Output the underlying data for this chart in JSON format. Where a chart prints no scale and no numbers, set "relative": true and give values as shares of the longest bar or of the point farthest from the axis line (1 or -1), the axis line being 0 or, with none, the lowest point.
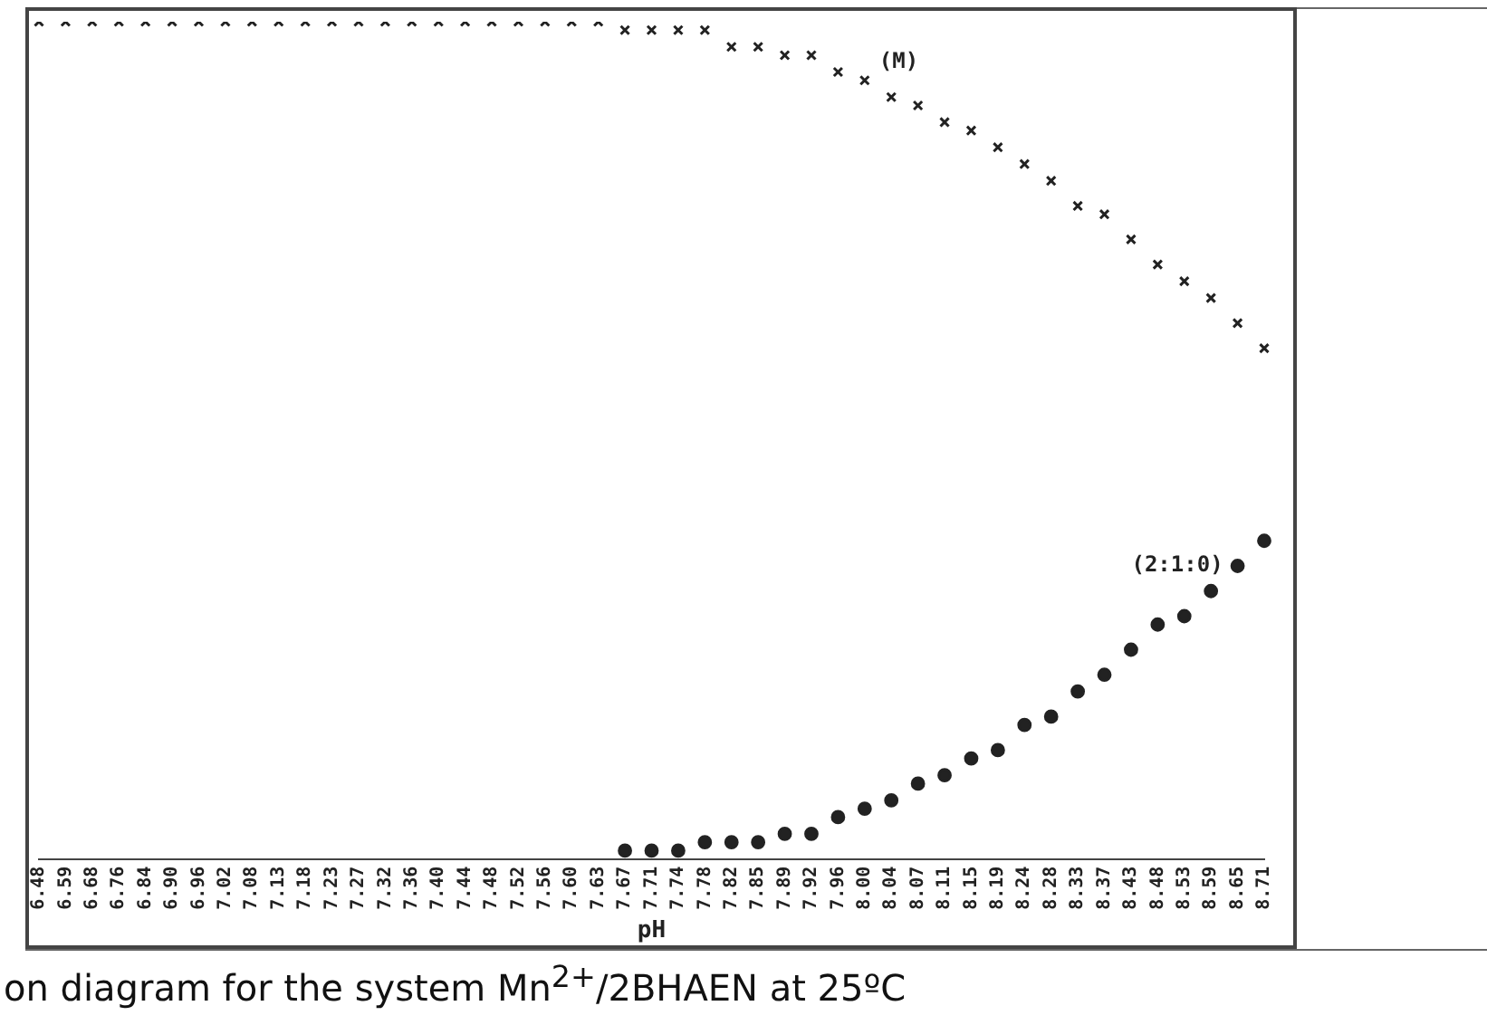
{
  "chart_data": {
    "type": "scatter",
    "relative": true,
    "xlabel": "pH",
    "grid": false,
    "legend": false,
    "tick_labels": "x",
    "categories": [
      "6.48",
      "6.59",
      "6.68",
      "6.76",
      "6.84",
      "6.90",
      "6.96",
      "7.02",
      "7.08",
      "7.13",
      "7.18",
      "7.23",
      "7.27",
      "7.32",
      "7.36",
      "7.40",
      "7.44",
      "7.48",
      "7.52",
      "7.56",
      "7.60",
      "7.63",
      "7.67",
      "7.71",
      "7.74",
      "7.78",
      "7.82",
      "7.85",
      "7.89",
      "7.92",
      "7.96",
      "8.00",
      "8.04",
      "8.07",
      "8.11",
      "8.15",
      "8.19",
      "8.24",
      "8.28",
      "8.33",
      "8.37",
      "8.43",
      "8.48",
      "8.53",
      "8.59",
      "8.65",
      "8.71"
    ],
    "series": [
      {
        "name": "(M)",
        "color": "#222222",
        "marker": "cross",
        "values": [
          1,
          1,
          1,
          1,
          1,
          1,
          1,
          1,
          1,
          1,
          1,
          1,
          1,
          1,
          1,
          1,
          1,
          1,
          1,
          1,
          1,
          1,
          0.99,
          0.99,
          0.99,
          0.99,
          0.97,
          0.97,
          0.96,
          0.96,
          0.94,
          0.93,
          0.91,
          0.9,
          0.88,
          0.87,
          0.85,
          0.83,
          0.81,
          0.78,
          0.77,
          0.74,
          0.71,
          0.69,
          0.67,
          0.64,
          0.61
        ]
      },
      {
        "name": "(2:1:0)",
        "color": "#222222",
        "marker": "circle",
        "values": [
          null,
          null,
          null,
          null,
          null,
          null,
          null,
          null,
          null,
          null,
          null,
          null,
          null,
          null,
          null,
          null,
          null,
          null,
          null,
          null,
          null,
          null,
          0.01,
          0.01,
          0.01,
          0.02,
          0.02,
          0.02,
          0.03,
          0.03,
          0.05,
          0.06,
          0.07,
          0.09,
          0.1,
          0.12,
          0.13,
          0.16,
          0.17,
          0.2,
          0.22,
          0.25,
          0.28,
          0.29,
          0.32,
          0.35,
          0.38
        ]
      }
    ],
    "annotations": [
      "on diagram for the system Mn$^{2+}$/2BHAEN at 25ºC"
    ]
  }
}
